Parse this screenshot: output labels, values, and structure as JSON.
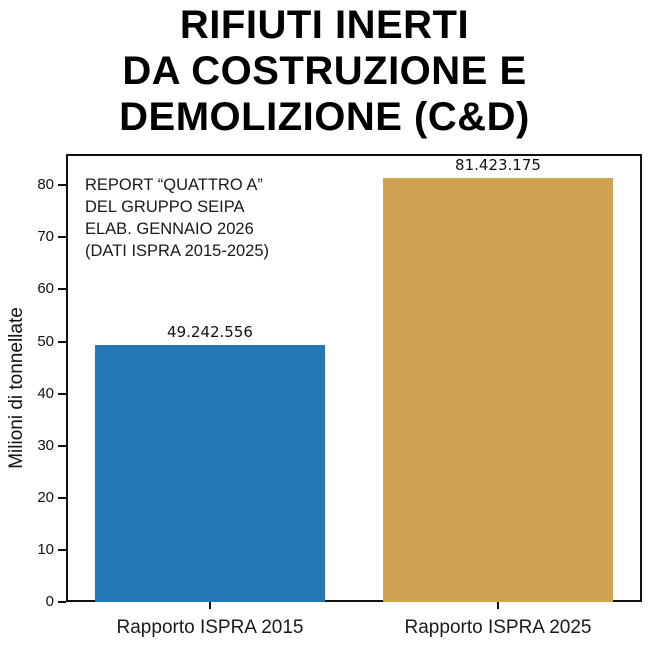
{
  "title": {
    "text": "RIFIUTI INERTI\nDA COSTRUZIONE E\nDEMOLIZIONE (C&D)"
  },
  "annotation": {
    "text": "REPORT “QUATTRO A”\nDEL GRUPPO SEIPA\nELAB. GENNAIO 2026\n(DATI ISPRA 2015-2025)"
  },
  "chart_data": {
    "type": "bar",
    "title": "RIFIUTI INERTI DA COSTRUZIONE E DEMOLIZIONE (C&D)",
    "categories": [
      "Rapporto ISPRA 2015",
      "Rapporto ISPRA 2025"
    ],
    "values": [
      49242556,
      81423175
    ],
    "values_in_millions": [
      49.242556,
      81.423175
    ],
    "value_labels": [
      "49.242.556",
      "81.423.175"
    ],
    "bar_colors": [
      "#2277b4",
      "#d0a353"
    ],
    "xlabel": "",
    "ylabel": "Milioni di tonnellate",
    "yticks": [
      0,
      10,
      20,
      30,
      40,
      50,
      60,
      70,
      80
    ],
    "ylim": [
      0,
      86
    ],
    "grid": false,
    "legend": null,
    "annotation": "REPORT “QUATTRO A”\nDEL GRUPPO SEIPA\nELAB. GENNAIO 2026\n(DATI ISPRA 2015-2025)",
    "frame_color": "#111111",
    "background_color": "#ffffff"
  }
}
